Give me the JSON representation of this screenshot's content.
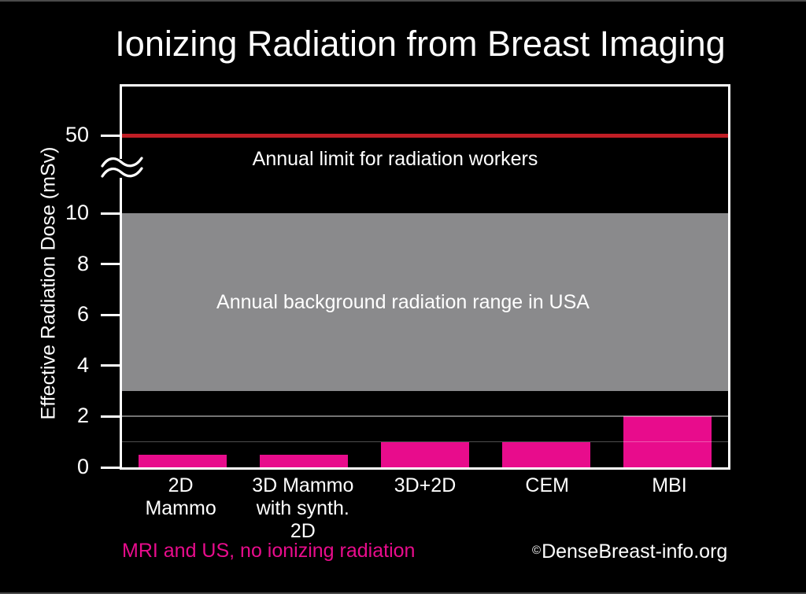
{
  "title": "Ionizing Radiation from Breast Imaging",
  "colors": {
    "background": "#000000",
    "bar": "#e80c8c",
    "limit_line": "#c01e25",
    "band": "#8a8a8c",
    "text": "#ffffff",
    "footnote": "#e80c8c",
    "edge_line": "#4a4a4a",
    "gridline_major": "rgba(255,255,255,0.45)",
    "gridline_minor": "rgba(255,255,255,0.3)"
  },
  "chart_data": {
    "type": "bar",
    "title": "Ionizing Radiation from Breast Imaging",
    "ylabel": "Effective Radiation Dose (mSv)",
    "xlabel": "",
    "unit": "mSv",
    "categories": [
      "2D Mammo",
      "3D Mammo with synth. 2D",
      "3D+2D",
      "CEM",
      "MBI"
    ],
    "category_lines": [
      [
        "2D",
        "Mammo"
      ],
      [
        "3D Mammo",
        "with synth. 2D"
      ],
      [
        "3D+2D"
      ],
      [
        "CEM"
      ],
      [
        "MBI"
      ]
    ],
    "values": [
      0.5,
      0.5,
      1.0,
      1.0,
      2.0
    ],
    "y_ticks": [
      0,
      2,
      4,
      6,
      8,
      10,
      50
    ],
    "y_axis_break_between": [
      10,
      50
    ],
    "gridlines_at": [
      1,
      2
    ],
    "grid": "partial",
    "legend_position": "none",
    "reference_line": {
      "value": 50,
      "label": "Annual limit for radiation workers"
    },
    "reference_band": {
      "from": 3,
      "to": 10,
      "label": "Annual background radiation range in USA"
    }
  },
  "footer": {
    "note": "MRI and US, no ionizing radiation",
    "credit_symbol": "©",
    "credit_text": "DenseBreast-info.org"
  }
}
